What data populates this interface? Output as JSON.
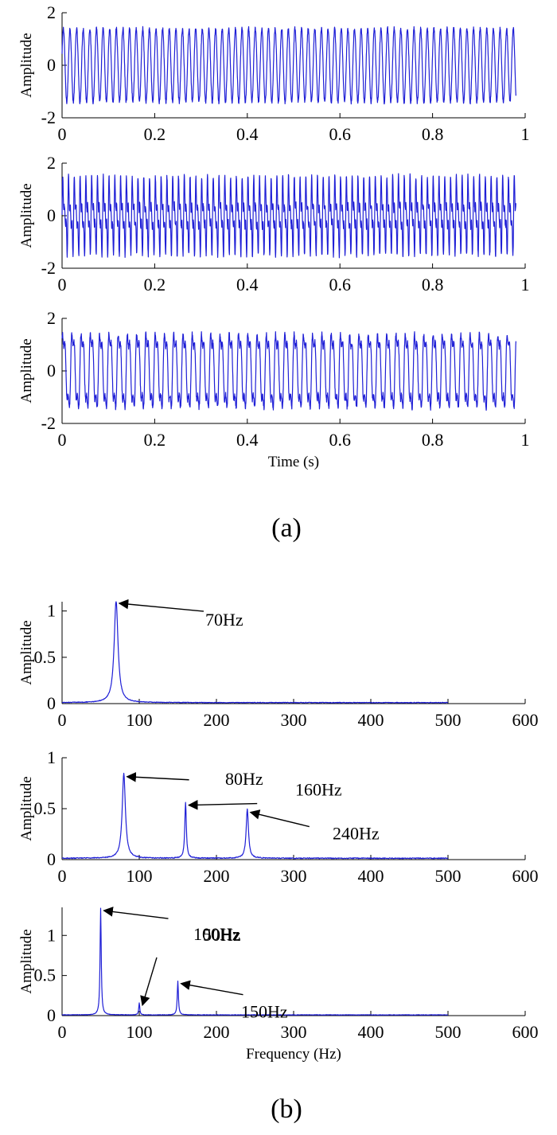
{
  "panel_labels": [
    "(a)",
    "(b)"
  ],
  "chart_data": [
    {
      "type": "line",
      "panel": "(a)",
      "xlabel": "",
      "ylabel": "Amplitude",
      "xlim": [
        0,
        1
      ],
      "ylim": [
        -2,
        2
      ],
      "xticks": [
        0,
        0.2,
        0.4,
        0.6,
        0.8,
        1
      ],
      "xtick_labels": [
        "0",
        "0.2",
        "0.4",
        "0.6",
        "0.8",
        "1"
      ],
      "yticks": [
        -2,
        0,
        2
      ],
      "ytick_labels": [
        "-2",
        "0",
        "2"
      ],
      "grid": false,
      "color": "#1f1fd6",
      "series": [
        {
          "x_start": 0,
          "x_end": 0.98,
          "fundamental_hz": 70,
          "harmonics": [
            [
              1,
              1.4
            ]
          ],
          "noise": 0.08,
          "phase": 0.3
        }
      ],
      "annotations": []
    },
    {
      "type": "line",
      "panel": "(a)",
      "xlabel": "",
      "ylabel": "Amplitude",
      "xlim": [
        0,
        1
      ],
      "ylim": [
        -2,
        2
      ],
      "xticks": [
        0,
        0.2,
        0.4,
        0.6,
        0.8,
        1
      ],
      "xtick_labels": [
        "0",
        "0.2",
        "0.4",
        "0.6",
        "0.8",
        "1"
      ],
      "yticks": [
        -2,
        0,
        2
      ],
      "ytick_labels": [
        "-2",
        "0",
        "2"
      ],
      "grid": false,
      "color": "#1f1fd6",
      "series": [
        {
          "x_start": 0,
          "x_end": 0.98,
          "fundamental_hz": 80,
          "harmonics": [
            [
              1,
              0.85
            ],
            [
              2,
              0.55
            ],
            [
              3,
              0.48
            ]
          ],
          "noise": 0.1,
          "phase": 0.0
        }
      ],
      "annotations": []
    },
    {
      "type": "line",
      "panel": "(a)",
      "xlabel": "Time (s)",
      "ylabel": "Amplitude",
      "xlim": [
        0,
        1
      ],
      "ylim": [
        -2,
        2
      ],
      "xticks": [
        0,
        0.2,
        0.4,
        0.6,
        0.8,
        1
      ],
      "xtick_labels": [
        "0",
        "0.2",
        "0.4",
        "0.6",
        "0.8",
        "1"
      ],
      "yticks": [
        -2,
        0,
        2
      ],
      "ytick_labels": [
        "-2",
        "0",
        "2"
      ],
      "grid": false,
      "color": "#1f1fd6",
      "series": [
        {
          "x_start": 0,
          "x_end": 0.98,
          "fundamental_hz": 50,
          "harmonics": [
            [
              1,
              1.35
            ],
            [
              2,
              0.15
            ],
            [
              3,
              0.42
            ]
          ],
          "noise": 0.1,
          "phase": 0.5
        }
      ],
      "annotations": []
    },
    {
      "type": "line",
      "panel": "(b)",
      "xlabel": "",
      "ylabel": "Amplitude",
      "xlim": [
        0,
        600
      ],
      "ylim": [
        0,
        1.1
      ],
      "xticks": [
        0,
        100,
        200,
        300,
        400,
        500,
        600
      ],
      "xtick_labels": [
        "0",
        "100",
        "200",
        "300",
        "400",
        "500",
        "600"
      ],
      "yticks": [
        0,
        0.5,
        1
      ],
      "ytick_labels": [
        "0",
        "0.5",
        "1"
      ],
      "grid": false,
      "color": "#1f1fd6",
      "series": [
        {
          "x_start": 0,
          "x_end": 500,
          "peaks": [
            [
              70,
              1.1,
              3.0
            ]
          ],
          "baseline": 0.012
        }
      ],
      "annotations": [
        {
          "text": "70Hz",
          "x": 70,
          "y": 1.1
        }
      ]
    },
    {
      "type": "line",
      "panel": "(b)",
      "xlabel": "",
      "ylabel": "Amplitude",
      "xlim": [
        0,
        600
      ],
      "ylim": [
        0,
        1
      ],
      "xticks": [
        0,
        100,
        200,
        300,
        400,
        500,
        600
      ],
      "xtick_labels": [
        "0",
        "100",
        "200",
        "300",
        "400",
        "500",
        "600"
      ],
      "yticks": [
        0,
        0.5,
        1
      ],
      "ytick_labels": [
        "0",
        "0.5",
        "1"
      ],
      "grid": false,
      "color": "#1f1fd6",
      "series": [
        {
          "x_start": 0,
          "x_end": 500,
          "peaks": [
            [
              80,
              0.83,
              2.5
            ],
            [
              160,
              0.55,
              1.2
            ],
            [
              240,
              0.48,
              1.8
            ]
          ],
          "baseline": 0.015
        }
      ],
      "annotations": [
        {
          "text": "80Hz",
          "x": 80,
          "y": 0.83
        },
        {
          "text": "160Hz",
          "x": 160,
          "y": 0.55
        },
        {
          "text": "240Hz",
          "x": 240,
          "y": 0.48
        }
      ]
    },
    {
      "type": "line",
      "panel": "(b)",
      "xlabel": "Frequency (Hz)",
      "ylabel": "Amplitude",
      "xlim": [
        0,
        600
      ],
      "ylim": [
        0,
        1.35
      ],
      "xticks": [
        0,
        100,
        200,
        300,
        400,
        500,
        600
      ],
      "xtick_labels": [
        "0",
        "100",
        "200",
        "300",
        "400",
        "500",
        "600"
      ],
      "yticks": [
        0,
        0.5,
        1
      ],
      "ytick_labels": [
        "0",
        "0.5",
        "1"
      ],
      "grid": false,
      "color": "#1f1fd6",
      "series": [
        {
          "x_start": 0,
          "x_end": 500,
          "peaks": [
            [
              50,
              1.33,
              0.9
            ],
            [
              100,
              0.15,
              0.8
            ],
            [
              150,
              0.42,
              0.9
            ]
          ],
          "baseline": 0.01
        }
      ],
      "annotations": [
        {
          "text": "50Hz",
          "x": 50,
          "y": 1.33
        },
        {
          "text": "100Hz",
          "x": 100,
          "y": 0.15
        },
        {
          "text": "150Hz",
          "x": 150,
          "y": 0.42
        }
      ]
    }
  ]
}
